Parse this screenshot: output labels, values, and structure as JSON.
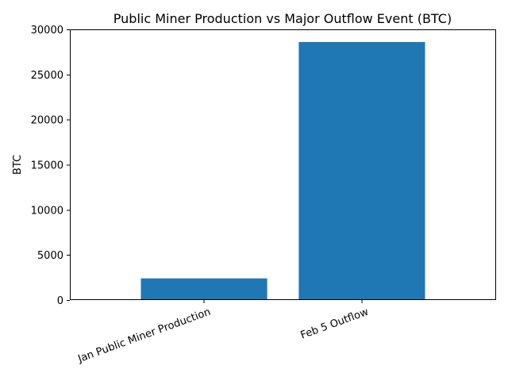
{
  "chart_data": {
    "type": "bar",
    "title": "Public Miner Production vs Major Outflow Event (BTC)",
    "xlabel": "",
    "ylabel": "BTC",
    "categories": [
      "Jan Public Miner Production",
      "Feb 5 Outflow"
    ],
    "values": [
      2400,
      28600
    ],
    "ylim": [
      0,
      30000
    ],
    "yticks": [
      0,
      5000,
      10000,
      15000,
      20000,
      25000,
      30000
    ],
    "bar_color": "#1f77b4",
    "grid": false,
    "legend": "none"
  }
}
